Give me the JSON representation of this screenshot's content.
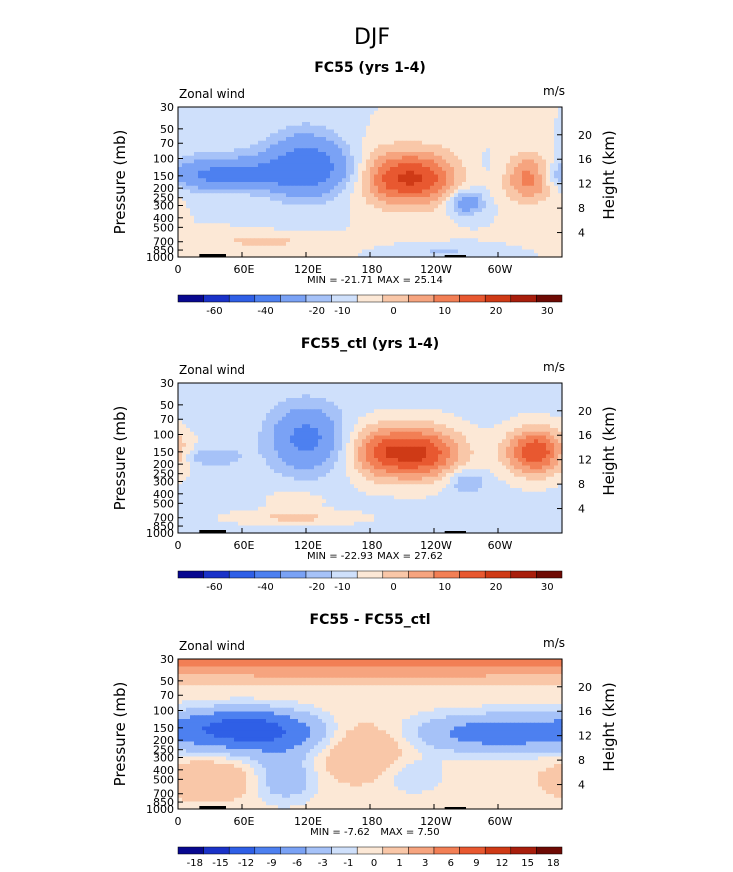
{
  "figure": {
    "season": "DJF",
    "colors": [
      "#08088f",
      "#1a32c8",
      "#2f5fe6",
      "#4d80f0",
      "#7aa2f5",
      "#a6c2f8",
      "#cfe0fb",
      "#fce8d6",
      "#f9c7a8",
      "#f6a47f",
      "#f27f55",
      "#e85830",
      "#cf3a16",
      "#a81e0c",
      "#6e0a04"
    ]
  },
  "chart_data": [
    {
      "type": "heatmap",
      "title": "FC55 (yrs 1-4)",
      "field_label": "Zonal wind",
      "units": "m/s",
      "ylabel": "Pressure (mb)",
      "y2label": "Height (km)",
      "pressure_levels": [
        30,
        50,
        70,
        100,
        150,
        200,
        250,
        300,
        400,
        500,
        700,
        850,
        1000
      ],
      "height_ticks": [
        4,
        8,
        12,
        16,
        20
      ],
      "x_ticks": [
        "0",
        "60E",
        "120E",
        "180",
        "120W",
        "60W"
      ],
      "xlim": [
        0,
        360
      ],
      "min_label": "MIN = -21.71",
      "max_label": "MAX = 25.14",
      "min": -21.71,
      "max": 25.14,
      "colorbar_labels": [
        "-60",
        "-40",
        "-20",
        "-10",
        "0",
        "10",
        "20",
        "30"
      ],
      "background_level": 0,
      "blobs": [
        {
          "lon": 120,
          "p": 115,
          "slon": 25,
          "sz": 0.55,
          "amp": -22
        },
        {
          "lon": 40,
          "p": 150,
          "slon": 45,
          "sz": 0.22,
          "amp": -15
        },
        {
          "lon": 70,
          "p": 130,
          "slon": 90,
          "sz": 0.35,
          "amp": -10
        },
        {
          "lon": 225,
          "p": 155,
          "slon": 28,
          "sz": 0.45,
          "amp": 26
        },
        {
          "lon": 190,
          "p": 150,
          "slon": 18,
          "sz": 0.45,
          "amp": 11
        },
        {
          "lon": 330,
          "p": 150,
          "slon": 18,
          "sz": 0.38,
          "amp": 25
        },
        {
          "lon": 270,
          "p": 280,
          "slon": 12,
          "sz": 0.2,
          "amp": -18
        },
        {
          "lon": 80,
          "p": 700,
          "slon": 50,
          "sz": 0.12,
          "amp": 6
        },
        {
          "lon": 250,
          "p": 850,
          "slon": 30,
          "sz": 0.08,
          "amp": -6
        }
      ]
    },
    {
      "type": "heatmap",
      "title": "FC55_ctl (yrs 1-4)",
      "field_label": "Zonal wind",
      "units": "m/s",
      "ylabel": "Pressure (mb)",
      "y2label": "Height (km)",
      "pressure_levels": [
        30,
        50,
        70,
        100,
        150,
        200,
        250,
        300,
        400,
        500,
        700,
        850,
        1000
      ],
      "height_ticks": [
        4,
        8,
        12,
        16,
        20
      ],
      "x_ticks": [
        "0",
        "60E",
        "120E",
        "180",
        "120W",
        "60W"
      ],
      "xlim": [
        0,
        360
      ],
      "min_label": "MIN = -22.93",
      "max_label": "MAX = 27.62",
      "min": -22.93,
      "max": 27.62,
      "colorbar_labels": [
        "-60",
        "-40",
        "-20",
        "-10",
        "0",
        "10",
        "20",
        "30"
      ],
      "background_level": -2,
      "blobs": [
        {
          "lon": 120,
          "p": 110,
          "slon": 22,
          "sz": 0.5,
          "amp": -22
        },
        {
          "lon": 30,
          "p": 170,
          "slon": 20,
          "sz": 0.15,
          "amp": -8
        },
        {
          "lon": 225,
          "p": 155,
          "slon": 30,
          "sz": 0.45,
          "amp": 28
        },
        {
          "lon": 185,
          "p": 150,
          "slon": 18,
          "sz": 0.45,
          "amp": 12
        },
        {
          "lon": 335,
          "p": 150,
          "slon": 20,
          "sz": 0.4,
          "amp": 27
        },
        {
          "lon": 110,
          "p": 700,
          "slon": 45,
          "sz": 0.12,
          "amp": 8
        },
        {
          "lon": 110,
          "p": 450,
          "slon": 25,
          "sz": 0.2,
          "amp": 4
        },
        {
          "lon": 270,
          "p": 300,
          "slon": 12,
          "sz": 0.2,
          "amp": -10
        }
      ]
    },
    {
      "type": "heatmap",
      "title": "FC55 - FC55_ctl",
      "field_label": "Zonal wind",
      "units": "m/s",
      "ylabel": "Pressure (mb)",
      "y2label": "Height (km)",
      "pressure_levels": [
        30,
        50,
        70,
        100,
        150,
        200,
        250,
        300,
        400,
        500,
        700,
        850,
        1000
      ],
      "height_ticks": [
        4,
        8,
        12,
        16,
        20
      ],
      "x_ticks": [
        "0",
        "60E",
        "120E",
        "180",
        "120W",
        "60W"
      ],
      "xlim": [
        0,
        360
      ],
      "min_label": "MIN = -7.62",
      "max_label": "MAX = 7.50",
      "min": -7.62,
      "max": 7.5,
      "colorbar_labels": [
        "-18",
        "-15",
        "-12",
        "-9",
        "-6",
        "-3",
        "-1",
        "0",
        "1",
        "3",
        "6",
        "9",
        "12",
        "15",
        "18"
      ],
      "background_level": 0.5,
      "blobs": [
        {
          "lon": 180,
          "p": 30,
          "slon": 400,
          "sz": 0.28,
          "amp": 7
        },
        {
          "lon": 60,
          "p": 150,
          "slon": 40,
          "sz": 0.3,
          "amp": -7
        },
        {
          "lon": 100,
          "p": 200,
          "slon": 40,
          "sz": 0.35,
          "amp": -3
        },
        {
          "lon": 300,
          "p": 170,
          "slon": 55,
          "sz": 0.3,
          "amp": -5
        },
        {
          "lon": 170,
          "p": 250,
          "slon": 30,
          "sz": 0.45,
          "amp": 3
        },
        {
          "lon": 30,
          "p": 500,
          "slon": 30,
          "sz": 0.3,
          "amp": 2.5
        },
        {
          "lon": 100,
          "p": 500,
          "slon": 20,
          "sz": 0.35,
          "amp": -3
        },
        {
          "lon": 220,
          "p": 450,
          "slon": 20,
          "sz": 0.3,
          "amp": -1.5
        }
      ]
    }
  ]
}
